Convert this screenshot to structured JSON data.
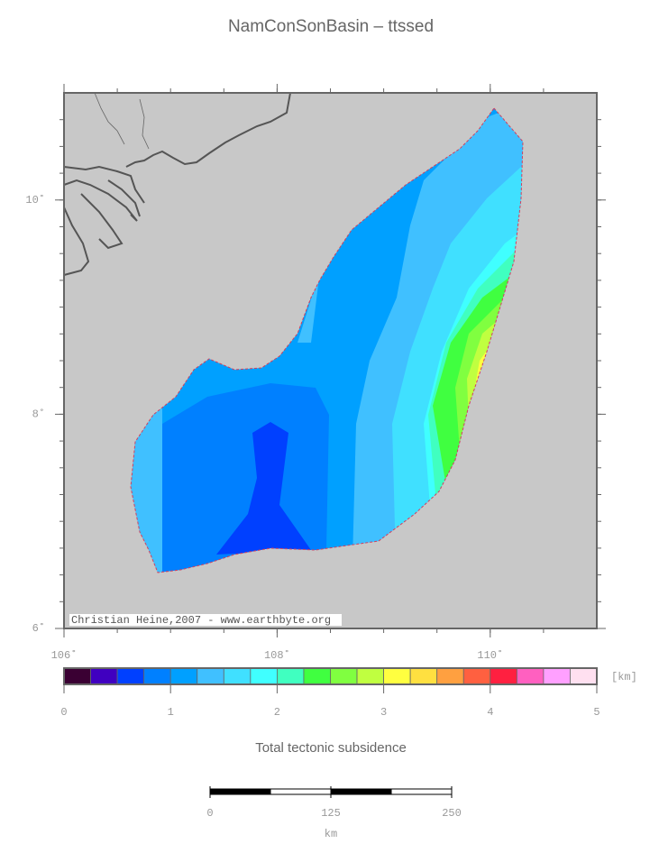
{
  "header": {
    "title": "NamConSonBasin – ttssed"
  },
  "map": {
    "lon_range": [
      106,
      111
    ],
    "lat_range": [
      6,
      11
    ],
    "lon_ticks": [
      {
        "value": 106,
        "label": "106˚"
      },
      {
        "value": 108,
        "label": "108˚"
      },
      {
        "value": 110,
        "label": "110˚"
      }
    ],
    "lat_ticks": [
      {
        "value": 6,
        "label": "6˚"
      },
      {
        "value": 8,
        "label": "8˚"
      },
      {
        "value": 10,
        "label": "10˚"
      }
    ],
    "credit": "Christian Heine,2007 - www.earthbyte.org"
  },
  "colorbar": {
    "range": [
      0,
      5
    ],
    "ticks": [
      0,
      1,
      2,
      3,
      4,
      5
    ],
    "unit": "[km]",
    "label": "Total tectonic subsidence",
    "colors": [
      "#3a0033",
      "#4000c0",
      "#0040ff",
      "#0080ff",
      "#00a0ff",
      "#40c0ff",
      "#40e0ff",
      "#40ffff",
      "#40ffc0",
      "#40ff40",
      "#80ff40",
      "#c0ff40",
      "#ffff40",
      "#ffe040",
      "#ffa040",
      "#ff6040",
      "#ff2040",
      "#ff60c0",
      "#ffa0ff",
      "#ffe0f0"
    ]
  },
  "scale_bar": {
    "range": [
      0,
      250
    ],
    "ticks": [
      0,
      125,
      250
    ],
    "unit": "km"
  }
}
